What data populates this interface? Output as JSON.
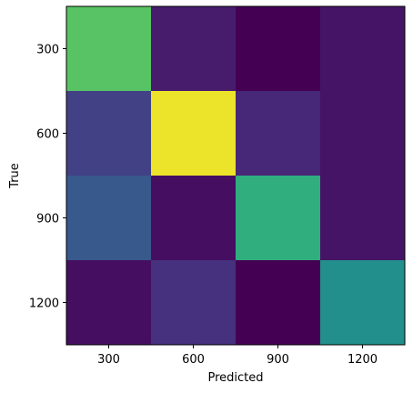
{
  "chart_data": {
    "type": "heatmap",
    "title": "",
    "xlabel": "Predicted",
    "ylabel": "True",
    "x_categories": [
      "300",
      "600",
      "900",
      "1200"
    ],
    "y_categories": [
      "300",
      "600",
      "900",
      "1200"
    ],
    "values": [
      [
        0.8,
        0.1,
        0.0,
        0.07
      ],
      [
        0.24,
        0.98,
        0.14,
        0.07
      ],
      [
        0.35,
        0.05,
        0.72,
        0.07
      ],
      [
        0.05,
        0.18,
        0.0,
        0.62
      ]
    ],
    "vmin": 0,
    "vmax": 1,
    "colormap": "viridis",
    "grid": false
  }
}
